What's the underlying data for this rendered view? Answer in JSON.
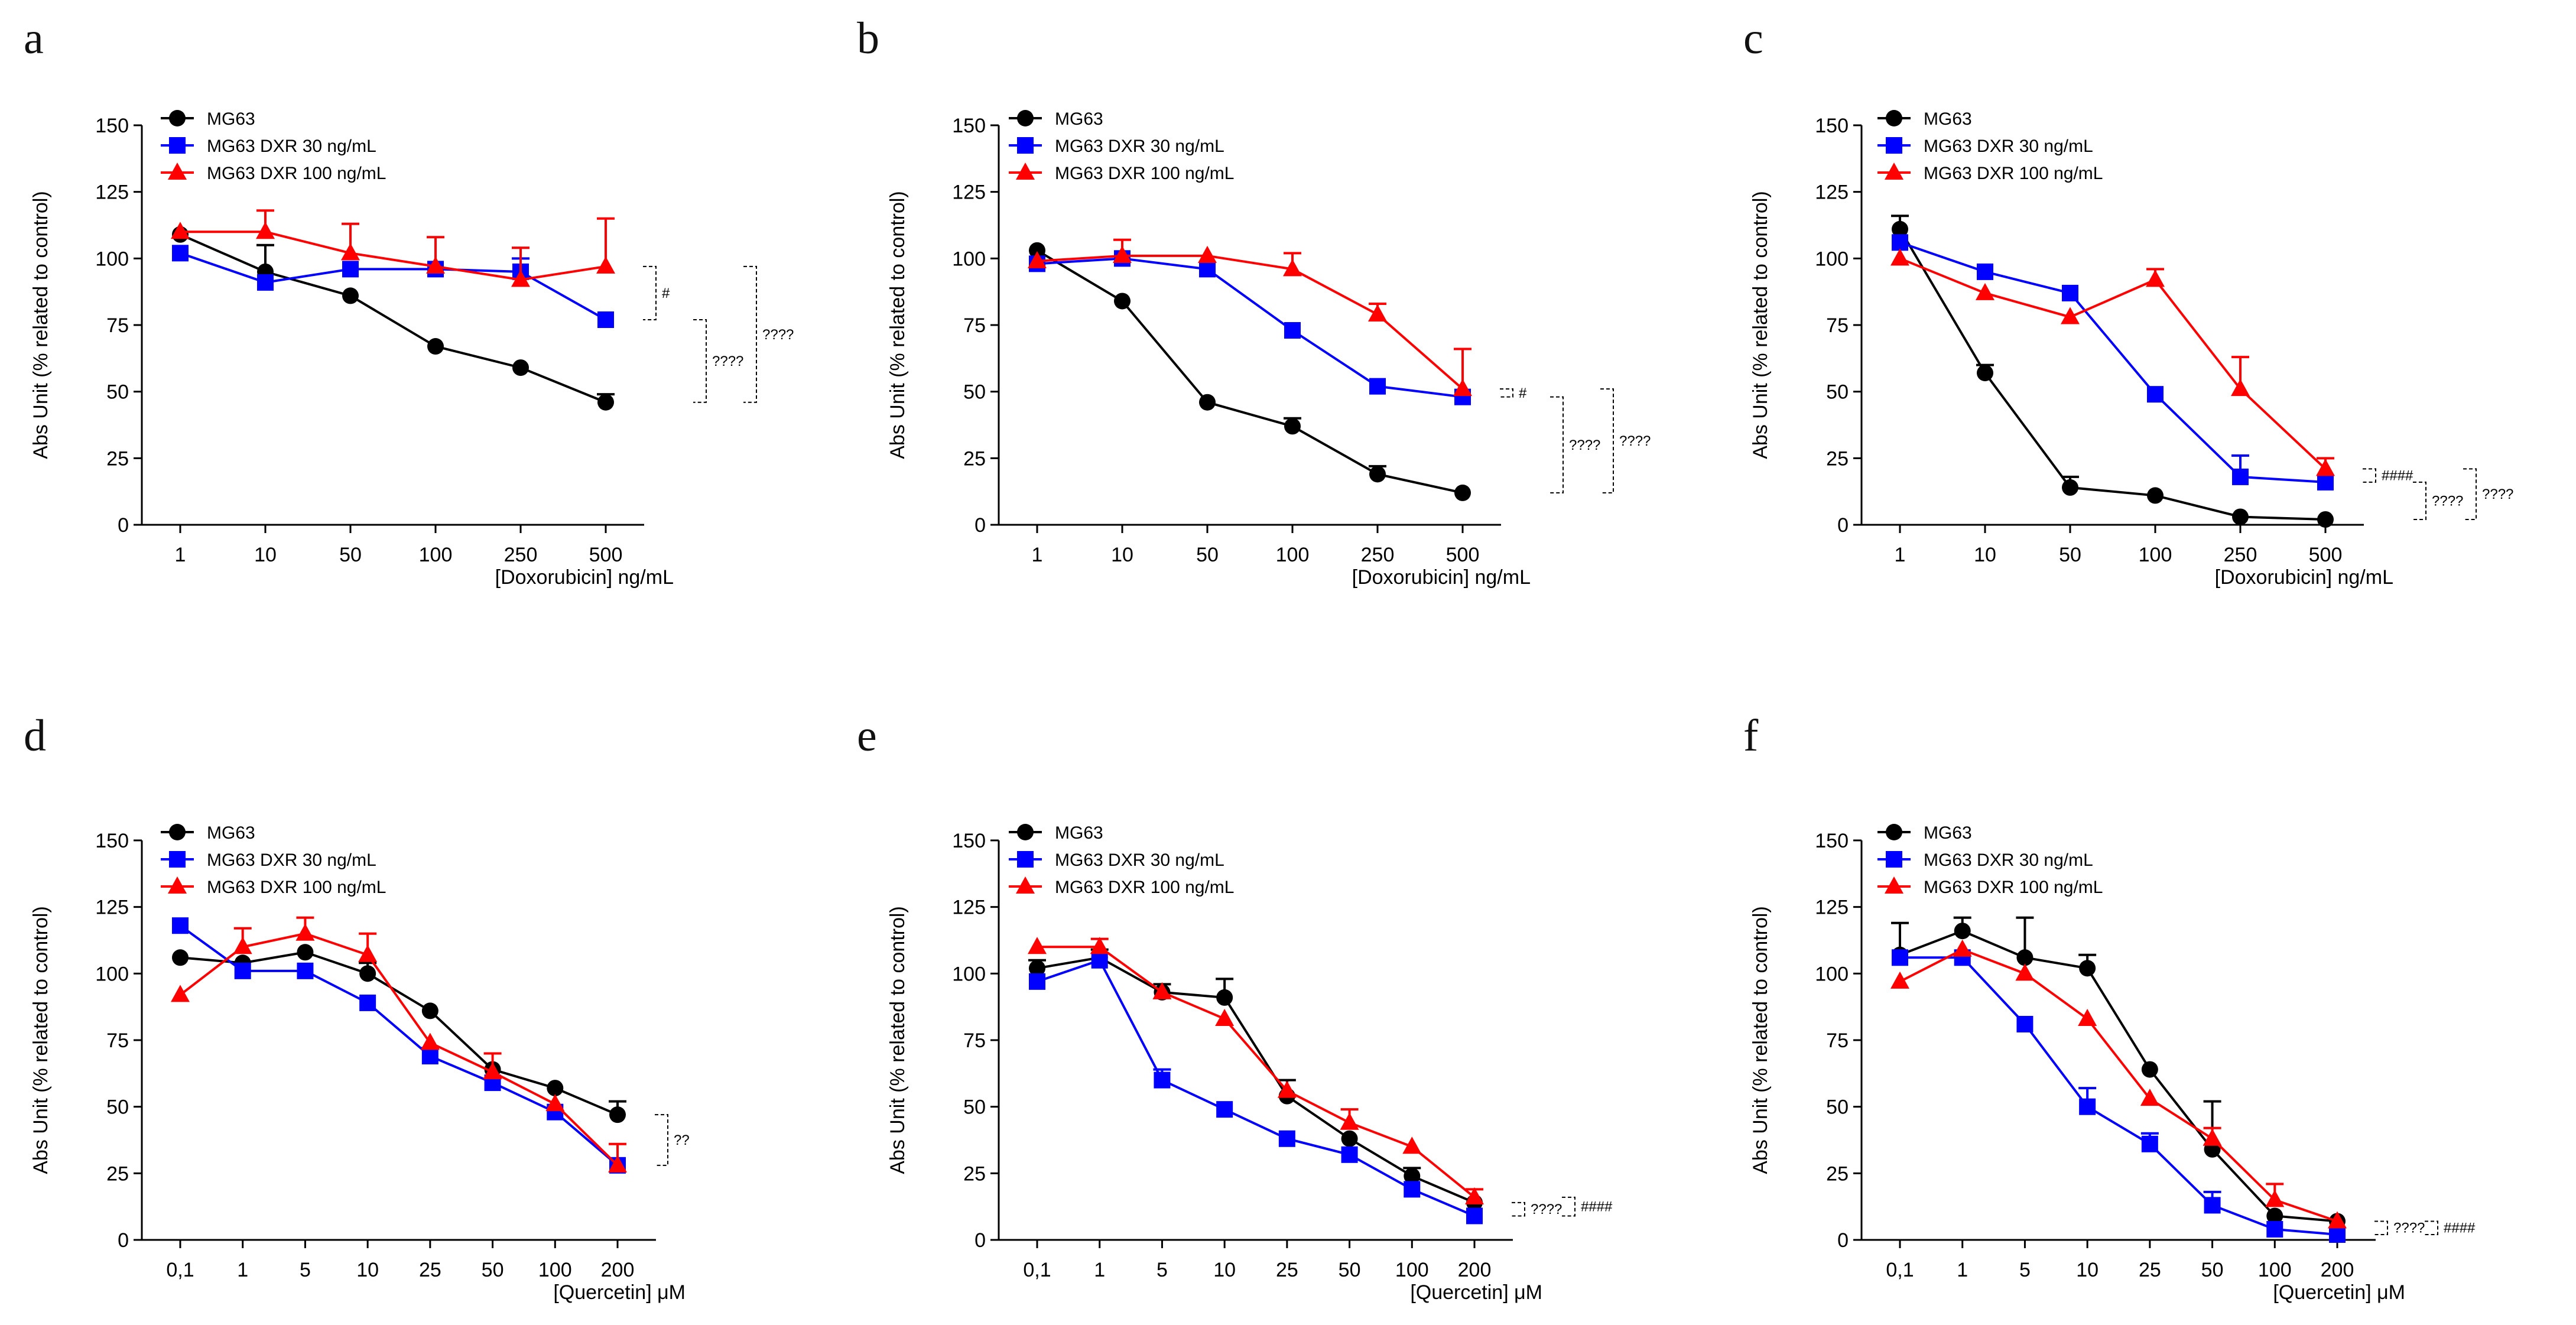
{
  "figure": {
    "series_names": [
      "MG63",
      "MG63 DXR 30 ng/mL",
      "MG63 DXR 100 ng/mL"
    ],
    "series_colors": [
      "#000000",
      "#0000ff",
      "#ff0000"
    ],
    "series_markers": [
      "circle",
      "square",
      "triangle"
    ]
  },
  "chart_data": [
    {
      "panel": "a",
      "type": "line",
      "categories": [
        "1",
        "10",
        "50",
        "100",
        "250",
        "500"
      ],
      "xlabel": "[Doxorubicin] ng/mL",
      "ylabel": "Abs Unit (% related to control)",
      "ylim": [
        0,
        150
      ],
      "yticks": [
        "0",
        "25",
        "50",
        "75",
        "100",
        "125",
        "150"
      ],
      "legend": "top-left",
      "series": [
        {
          "name": "MG63",
          "values": [
            109,
            95,
            86,
            67,
            59,
            46
          ],
          "errors": [
            0,
            10,
            0,
            0,
            0,
            3
          ]
        },
        {
          "name": "MG63 DXR 30 ng/mL",
          "values": [
            102,
            91,
            96,
            96,
            95,
            77
          ],
          "errors": [
            0,
            0,
            0,
            0,
            5,
            0
          ]
        },
        {
          "name": "MG63 DXR 100 ng/mL",
          "values": [
            110,
            110,
            102,
            97,
            92,
            97
          ],
          "errors": [
            0,
            8,
            11,
            11,
            12,
            18
          ]
        }
      ],
      "annotations": [
        {
          "label": "#",
          "from": 1,
          "to": 2
        },
        {
          "label": "????",
          "from": 0,
          "to": 1
        },
        {
          "label": "????",
          "from": 0,
          "to": 2
        }
      ]
    },
    {
      "panel": "b",
      "type": "line",
      "categories": [
        "1",
        "10",
        "50",
        "100",
        "250",
        "500"
      ],
      "xlabel": "[Doxorubicin] ng/mL",
      "ylabel": "Abs Unit (% related to control)",
      "ylim": [
        0,
        150
      ],
      "yticks": [
        "0",
        "25",
        "50",
        "75",
        "100",
        "125",
        "150"
      ],
      "legend": "top-left",
      "series": [
        {
          "name": "MG63",
          "values": [
            103,
            84,
            46,
            37,
            19,
            12
          ],
          "errors": [
            0,
            0,
            0,
            3,
            3,
            0
          ]
        },
        {
          "name": "MG63 DXR 30 ng/mL",
          "values": [
            98,
            100,
            96,
            73,
            52,
            48
          ],
          "errors": [
            0,
            0,
            0,
            0,
            0,
            0
          ]
        },
        {
          "name": "MG63 DXR 100 ng/mL",
          "values": [
            99,
            101,
            101,
            96,
            79,
            51
          ],
          "errors": [
            0,
            6,
            0,
            6,
            4,
            15
          ]
        }
      ],
      "annotations": [
        {
          "label": "#",
          "from": 1,
          "to": 2
        },
        {
          "label": "????",
          "from": 0,
          "to": 1
        },
        {
          "label": "????",
          "from": 0,
          "to": 2
        }
      ]
    },
    {
      "panel": "c",
      "type": "line",
      "categories": [
        "1",
        "10",
        "50",
        "100",
        "250",
        "500"
      ],
      "xlabel": "[Doxorubicin] ng/mL",
      "ylabel": "Abs Unit (% related to control)",
      "ylim": [
        0,
        150
      ],
      "yticks": [
        "0",
        "25",
        "50",
        "75",
        "100",
        "125",
        "150"
      ],
      "legend": "top-left",
      "series": [
        {
          "name": "MG63",
          "values": [
            111,
            57,
            14,
            11,
            3,
            2
          ],
          "errors": [
            5,
            3,
            4,
            0,
            0,
            0
          ]
        },
        {
          "name": "MG63 DXR 30 ng/mL",
          "values": [
            106,
            95,
            87,
            49,
            18,
            16
          ],
          "errors": [
            0,
            0,
            0,
            0,
            8,
            0
          ]
        },
        {
          "name": "MG63 DXR 100 ng/mL",
          "values": [
            100,
            87,
            78,
            92,
            51,
            21
          ],
          "errors": [
            0,
            0,
            0,
            4,
            12,
            4
          ]
        }
      ],
      "annotations": [
        {
          "label": "####",
          "from": 1,
          "to": 2
        },
        {
          "label": "????",
          "from": 0,
          "to": 1
        },
        {
          "label": "????",
          "from": 0,
          "to": 2
        }
      ]
    },
    {
      "panel": "d",
      "type": "line",
      "categories": [
        "0,1",
        "1",
        "5",
        "10",
        "25",
        "50",
        "100",
        "200"
      ],
      "xlabel": "[Quercetin] μM",
      "ylabel": "Abs Unit (% related to control)",
      "ylim": [
        0,
        150
      ],
      "yticks": [
        "0",
        "25",
        "50",
        "75",
        "100",
        "125",
        "150"
      ],
      "legend": "top-left",
      "series": [
        {
          "name": "MG63",
          "values": [
            106,
            104,
            108,
            100,
            86,
            64,
            57,
            47
          ],
          "errors": [
            0,
            0,
            0,
            4,
            0,
            0,
            0,
            5
          ]
        },
        {
          "name": "MG63 DXR 30 ng/mL",
          "values": [
            118,
            101,
            101,
            89,
            69,
            59,
            48,
            28
          ],
          "errors": [
            0,
            0,
            0,
            0,
            3,
            0,
            0,
            0
          ]
        },
        {
          "name": "MG63 DXR 100 ng/mL",
          "values": [
            92,
            110,
            115,
            107,
            74,
            63,
            51,
            28
          ],
          "errors": [
            0,
            7,
            6,
            8,
            0,
            7,
            0,
            8
          ]
        }
      ],
      "annotations": [
        {
          "label": "??",
          "from": 0,
          "to": 2
        }
      ]
    },
    {
      "panel": "e",
      "type": "line",
      "categories": [
        "0,1",
        "1",
        "5",
        "10",
        "25",
        "50",
        "100",
        "200"
      ],
      "xlabel": "[Quercetin] μM",
      "ylabel": "Abs Unit (% related to control)",
      "ylim": [
        0,
        150
      ],
      "yticks": [
        "0",
        "25",
        "50",
        "75",
        "100",
        "125",
        "150"
      ],
      "legend": "top-left",
      "series": [
        {
          "name": "MG63",
          "values": [
            102,
            106,
            93,
            91,
            54,
            38,
            24,
            14
          ],
          "errors": [
            3,
            3,
            3,
            7,
            6,
            0,
            3,
            0
          ]
        },
        {
          "name": "MG63 DXR 30 ng/mL",
          "values": [
            97,
            105,
            60,
            49,
            38,
            32,
            19,
            9
          ],
          "errors": [
            0,
            0,
            4,
            0,
            0,
            0,
            0,
            0
          ]
        },
        {
          "name": "MG63 DXR 100 ng/mL",
          "values": [
            110,
            110,
            93,
            83,
            56,
            44,
            35,
            16
          ],
          "errors": [
            0,
            3,
            0,
            0,
            0,
            5,
            0,
            3
          ]
        }
      ],
      "annotations": [
        {
          "label": "????",
          "from": 0,
          "to": 1
        },
        {
          "label": "####",
          "from": 1,
          "to": 2
        }
      ]
    },
    {
      "panel": "f",
      "type": "line",
      "categories": [
        "0,1",
        "1",
        "5",
        "10",
        "25",
        "50",
        "100",
        "200"
      ],
      "xlabel": "[Quercetin] μM",
      "ylabel": "Abs Unit (% related to control)",
      "ylim": [
        0,
        150
      ],
      "yticks": [
        "0",
        "25",
        "50",
        "75",
        "100",
        "125",
        "150"
      ],
      "legend": "top-left",
      "series": [
        {
          "name": "MG63",
          "values": [
            107,
            116,
            106,
            102,
            64,
            34,
            9,
            7
          ],
          "errors": [
            12,
            5,
            15,
            5,
            0,
            18,
            0,
            0
          ]
        },
        {
          "name": "MG63 DXR 30 ng/mL",
          "values": [
            106,
            106,
            81,
            50,
            36,
            13,
            4,
            2
          ],
          "errors": [
            0,
            0,
            0,
            7,
            4,
            5,
            0,
            0
          ]
        },
        {
          "name": "MG63 DXR 100 ng/mL",
          "values": [
            97,
            109,
            100,
            83,
            53,
            38,
            15,
            7
          ],
          "errors": [
            0,
            0,
            0,
            0,
            0,
            4,
            6,
            0
          ]
        }
      ],
      "annotations": [
        {
          "label": "????",
          "from": 0,
          "to": 1
        },
        {
          "label": "####",
          "from": 1,
          "to": 2
        }
      ]
    }
  ]
}
